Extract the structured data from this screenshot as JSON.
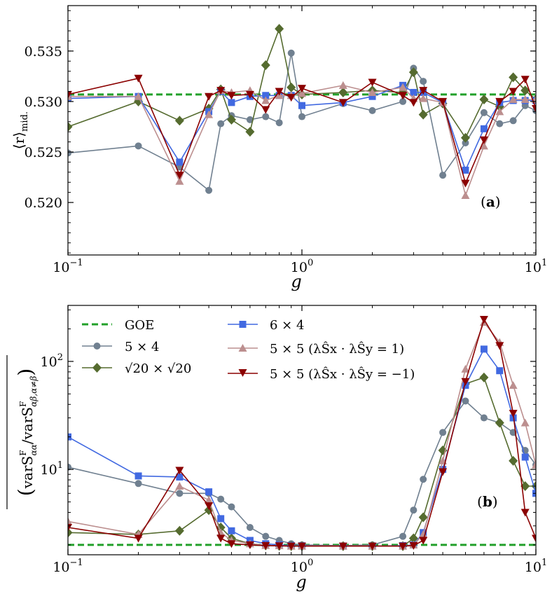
{
  "colors": {
    "goe": "#22a02a",
    "s5x4": "#708090",
    "sqrt20": "#556b2f",
    "s6x4": "#4169e1",
    "s5x5p": "#bc8f8f",
    "s5x5m": "#8b0000"
  },
  "chart_data": [
    {
      "type": "line",
      "panel_label": "(a)",
      "xlabel": "g",
      "ylabel": "⟨r⟩mid.",
      "ylabel_main": "⟨r⟩",
      "ylabel_sub": "mid.",
      "xscale": "log",
      "xlim": [
        0.1,
        10
      ],
      "ylim": [
        0.5148,
        0.5395
      ],
      "xticks": [
        {
          "v": 0.1,
          "base": "10",
          "exp": "−1"
        },
        {
          "v": 1,
          "base": "10",
          "exp": "0"
        },
        {
          "v": 10,
          "base": "10",
          "exp": "1"
        }
      ],
      "yticks": [
        {
          "v": 0.52,
          "label": "0.520"
        },
        {
          "v": 0.525,
          "label": "0.525"
        },
        {
          "v": 0.53,
          "label": "0.530"
        },
        {
          "v": 0.535,
          "label": "0.535"
        }
      ],
      "goe_value": 0.5307,
      "series": [
        {
          "key": "s5x4",
          "marker": "circle",
          "x": [
            0.1,
            0.2,
            0.3,
            0.4,
            0.45,
            0.5,
            0.6,
            0.7,
            0.8,
            0.9,
            1.0,
            1.5,
            2.0,
            2.7,
            3.0,
            3.3,
            4.0,
            5.0,
            6.0,
            7.0,
            8.0,
            9.0,
            10.0
          ],
          "y": [
            0.5249,
            0.5256,
            0.5235,
            0.5212,
            0.5278,
            0.5286,
            0.5282,
            0.5285,
            0.5279,
            0.5348,
            0.5285,
            0.5298,
            0.5291,
            0.53,
            0.5333,
            0.532,
            0.5227,
            0.5259,
            0.5289,
            0.5278,
            0.5281,
            0.5296,
            0.5291
          ]
        },
        {
          "key": "sqrt20",
          "marker": "diamond",
          "x": [
            0.1,
            0.2,
            0.3,
            0.4,
            0.45,
            0.5,
            0.6,
            0.7,
            0.8,
            0.9,
            1.0,
            1.5,
            2.0,
            2.7,
            3.0,
            3.3,
            4.0,
            5.0,
            6.0,
            7.0,
            8.0,
            9.0,
            10.0
          ],
          "y": [
            0.5275,
            0.53,
            0.5281,
            0.5293,
            0.5312,
            0.5282,
            0.527,
            0.5336,
            0.5372,
            0.5314,
            0.5307,
            0.5309,
            0.5311,
            0.5309,
            0.5329,
            0.5287,
            0.5298,
            0.5264,
            0.5302,
            0.5295,
            0.5324,
            0.5311,
            0.5302
          ]
        },
        {
          "key": "s6x4",
          "marker": "square",
          "x": [
            0.1,
            0.2,
            0.3,
            0.4,
            0.45,
            0.5,
            0.6,
            0.7,
            0.8,
            0.9,
            1.0,
            1.5,
            2.0,
            2.7,
            3.0,
            3.3,
            4.0,
            5.0,
            6.0,
            7.0,
            8.0,
            9.0,
            10.0
          ],
          "y": [
            0.5303,
            0.5305,
            0.524,
            0.529,
            0.531,
            0.5299,
            0.5305,
            0.5306,
            0.5306,
            0.5306,
            0.5296,
            0.5299,
            0.5305,
            0.5316,
            0.5309,
            0.5309,
            0.5299,
            0.5232,
            0.5273,
            0.5299,
            0.5301,
            0.5301,
            0.5301
          ]
        },
        {
          "key": "s5x5p",
          "marker": "triangle-up",
          "x": [
            0.1,
            0.2,
            0.3,
            0.4,
            0.45,
            0.5,
            0.6,
            0.7,
            0.8,
            0.9,
            1.0,
            1.5,
            2.0,
            2.7,
            3.0,
            3.3,
            4.0,
            5.0,
            6.0,
            7.0,
            8.0,
            9.0,
            10.0
          ],
          "y": [
            0.5305,
            0.5305,
            0.5221,
            0.5287,
            0.5311,
            0.5309,
            0.5311,
            0.5301,
            0.5306,
            0.5306,
            0.5308,
            0.5316,
            0.5309,
            0.5314,
            0.5303,
            0.5303,
            0.5299,
            0.5207,
            0.5256,
            0.529,
            0.5302,
            0.5302,
            0.5302
          ]
        },
        {
          "key": "s5x5m",
          "marker": "triangle-down",
          "x": [
            0.1,
            0.2,
            0.3,
            0.4,
            0.45,
            0.5,
            0.6,
            0.7,
            0.8,
            0.9,
            1.0,
            1.5,
            2.0,
            2.7,
            3.0,
            3.3,
            4.0,
            5.0,
            6.0,
            7.0,
            8.0,
            9.0,
            10.0
          ],
          "y": [
            0.5307,
            0.5323,
            0.5227,
            0.5305,
            0.5311,
            0.5306,
            0.5307,
            0.5292,
            0.531,
            0.5304,
            0.5313,
            0.5299,
            0.5319,
            0.5306,
            0.5299,
            0.5311,
            0.53,
            0.5219,
            0.5262,
            0.53,
            0.531,
            0.5322,
            0.5293
          ]
        }
      ]
    },
    {
      "type": "line",
      "panel_label": "(b)",
      "xlabel": "g",
      "ylabel": "(varSαα F / varSαβ,α≠β F) averaged",
      "xscale": "log",
      "yscale": "log",
      "xlim": [
        0.1,
        10
      ],
      "ylim": [
        1.62,
        330
      ],
      "xticks": [
        {
          "v": 0.1,
          "base": "10",
          "exp": "−1"
        },
        {
          "v": 1,
          "base": "10",
          "exp": "0"
        },
        {
          "v": 10,
          "base": "10",
          "exp": "1"
        }
      ],
      "yticks": [
        {
          "v": 10,
          "base": "10",
          "exp": "1"
        },
        {
          "v": 100,
          "base": "10",
          "exp": "2"
        }
      ],
      "goe_value": 2.0,
      "series": [
        {
          "key": "s5x4",
          "marker": "circle",
          "x": [
            0.1,
            0.2,
            0.3,
            0.4,
            0.45,
            0.5,
            0.6,
            0.7,
            0.8,
            0.9,
            1.0,
            1.5,
            2.0,
            2.7,
            3.0,
            3.3,
            4.0,
            5.0,
            6.0,
            7.0,
            8.0,
            9.0,
            10.0
          ],
          "y": [
            10.5,
            7.4,
            6.0,
            6.0,
            5.3,
            4.5,
            2.9,
            2.4,
            2.2,
            2.05,
            2.0,
            1.97,
            2.0,
            2.4,
            4.2,
            8.1,
            22.0,
            43.0,
            30.0,
            27.0,
            22.0,
            15.0,
            11.0
          ]
        },
        {
          "key": "sqrt20",
          "marker": "diamond",
          "x": [
            0.1,
            0.2,
            0.3,
            0.4,
            0.45,
            0.5,
            0.6,
            0.7,
            0.8,
            0.9,
            1.0,
            1.5,
            2.0,
            2.7,
            3.0,
            3.3,
            4.0,
            5.0,
            6.0,
            7.0,
            8.0,
            9.0,
            10.0
          ],
          "y": [
            2.6,
            2.5,
            2.7,
            4.2,
            2.9,
            2.3,
            2.05,
            1.98,
            1.96,
            1.95,
            1.95,
            1.95,
            1.95,
            1.95,
            2.3,
            3.6,
            15.0,
            62.0,
            71.0,
            27.0,
            12.0,
            7.0,
            7.0
          ]
        },
        {
          "key": "s6x4",
          "marker": "square",
          "x": [
            0.1,
            0.2,
            0.3,
            0.4,
            0.45,
            0.5,
            0.6,
            0.7,
            0.8,
            0.9,
            1.0,
            1.5,
            2.0,
            2.7,
            3.0,
            3.3,
            4.0,
            5.0,
            6.0,
            7.0,
            8.0,
            9.0,
            10.0
          ],
          "y": [
            20.0,
            8.7,
            8.5,
            6.2,
            3.5,
            2.7,
            2.2,
            2.05,
            2.0,
            1.97,
            1.96,
            1.95,
            1.95,
            1.97,
            2.0,
            2.6,
            10.0,
            60.0,
            130.0,
            82.0,
            30.0,
            13.0,
            6.0
          ]
        },
        {
          "key": "s5x5p",
          "marker": "triangle-up",
          "x": [
            0.1,
            0.2,
            0.3,
            0.4,
            0.45,
            0.5,
            0.6,
            0.7,
            0.8,
            0.9,
            1.0,
            1.5,
            2.0,
            2.7,
            3.0,
            3.3,
            4.0,
            5.0,
            6.0,
            7.0,
            8.0,
            9.0,
            10.0
          ],
          "y": [
            3.3,
            2.5,
            7.0,
            5.2,
            2.6,
            2.2,
            2.05,
            1.98,
            1.97,
            1.95,
            1.95,
            1.95,
            1.95,
            1.95,
            2.0,
            2.5,
            12.0,
            85.0,
            230.0,
            150.0,
            60.0,
            27.0,
            11.0
          ]
        },
        {
          "key": "s5x5m",
          "marker": "triangle-down",
          "x": [
            0.1,
            0.2,
            0.3,
            0.4,
            0.45,
            0.5,
            0.6,
            0.7,
            0.8,
            0.9,
            1.0,
            1.5,
            2.0,
            2.7,
            3.0,
            3.3,
            4.0,
            5.0,
            6.0,
            7.0,
            8.0,
            9.0,
            10.0
          ],
          "y": [
            2.9,
            2.3,
            9.8,
            4.6,
            2.3,
            2.05,
            2.0,
            1.97,
            1.96,
            1.95,
            1.95,
            1.95,
            1.95,
            1.95,
            1.97,
            2.2,
            9.5,
            65.0,
            245.0,
            140.0,
            33.0,
            4.0,
            2.3
          ]
        }
      ]
    }
  ],
  "legend": {
    "goe": "GOE",
    "s5x4": "5 × 4",
    "sqrt20_a": "√20 × √20",
    "s6x4": "6 × 4",
    "s5x5p": "5 × 5 (λŜx · λŜy = 1)",
    "s5x5m": "5 × 5 (λŜx · λŜy = −1)"
  }
}
